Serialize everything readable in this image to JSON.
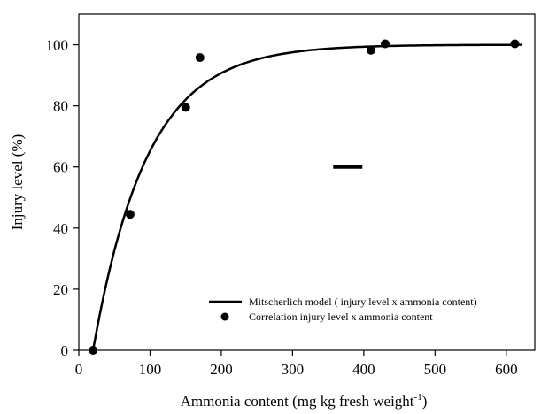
{
  "chart_data": {
    "type": "scatter",
    "title": "",
    "xlabel": "Ammonia content (mg kg fresh weight",
    "xlabel_superscript": "-1",
    "xlabel_suffix": ")",
    "ylabel": "Injury level (%)",
    "xlim": [
      0,
      640
    ],
    "ylim": [
      0,
      110
    ],
    "x_ticks": [
      0,
      100,
      200,
      300,
      400,
      500,
      600
    ],
    "y_ticks": [
      0,
      20,
      40,
      60,
      80,
      100
    ],
    "grid": false,
    "legend_position": "bottom-right",
    "colors": {
      "series": "#000000"
    },
    "series": [
      {
        "name": "Correlation injury level x ammonia content",
        "kind": "scatter",
        "x": [
          20,
          72,
          150,
          170,
          410,
          430,
          612
        ],
        "y": [
          0,
          44.5,
          79.5,
          95.8,
          98.2,
          100.3,
          100.3
        ]
      },
      {
        "name": "Mitscherlich model ( injury level x ammonia content)",
        "kind": "line",
        "model": {
          "asymptote": 100,
          "x0": 20,
          "k": 0.0132
        },
        "x_range": [
          20,
          622
        ]
      }
    ],
    "annotation_segment": {
      "x": [
        357,
        398
      ],
      "y": [
        60,
        60
      ]
    }
  }
}
